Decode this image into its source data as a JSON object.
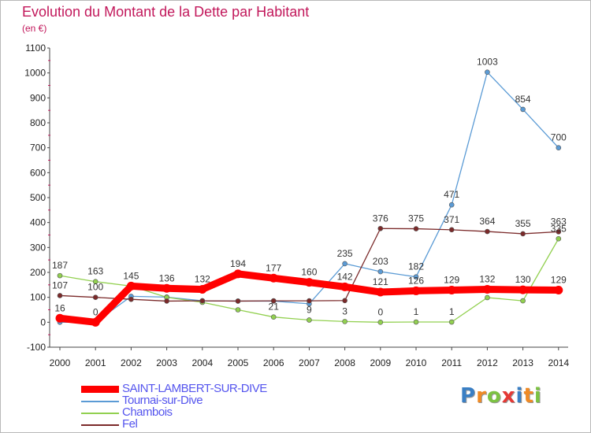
{
  "header": {
    "title": "Evolution du Montant de la Dette par Habitant",
    "subtitle": "(en €)"
  },
  "brand": {
    "letters": [
      "P",
      "r",
      "o",
      "x",
      "i",
      "t",
      "i"
    ],
    "colors": [
      "#3a7fc4",
      "#f08a24",
      "#7cc242",
      "#e53935",
      "#3a7fc4",
      "#f08a24",
      "#7cc242"
    ]
  },
  "colors": {
    "title": "#c2185b",
    "grid_tick": "#c2185b",
    "axis": "#444444"
  },
  "chart_data": {
    "type": "line",
    "title": "Evolution du Montant de la Dette par Habitant",
    "subtitle": "(en €)",
    "x": [
      2000,
      2001,
      2002,
      2003,
      2004,
      2005,
      2006,
      2007,
      2008,
      2009,
      2010,
      2011,
      2012,
      2013,
      2014
    ],
    "ylim": [
      -100,
      1100
    ],
    "yticks": [
      -100,
      0,
      100,
      200,
      300,
      400,
      500,
      600,
      700,
      800,
      900,
      1000,
      1100
    ],
    "grid": false,
    "legend_position": "bottom-left",
    "series": [
      {
        "name": "Tournai-sur-Dive",
        "color": "#5b9bd5",
        "values": [
          0,
          0,
          104,
          101,
          86,
          85,
          85,
          74,
          235,
          203,
          182,
          471,
          1003,
          854,
          700
        ],
        "labels": [
          "",
          "",
          "",
          "",
          "",
          "",
          "",
          "",
          "235",
          "203",
          "182",
          "471",
          "1003",
          "854",
          "700"
        ]
      },
      {
        "name": "Chambois",
        "color": "#92d050",
        "values": [
          187,
          163,
          145,
          100,
          80,
          50,
          21,
          9,
          3,
          0,
          1,
          1,
          99,
          86,
          335
        ],
        "labels": [
          "187",
          "163",
          "145",
          "",
          "",
          "",
          "21",
          "9",
          "3",
          "0",
          "1",
          "1",
          "",
          "",
          "335"
        ]
      },
      {
        "name": "Fel",
        "color": "#7b2a2a",
        "values": [
          107,
          100,
          92,
          85,
          86,
          85,
          86,
          86,
          87,
          376,
          375,
          371,
          364,
          355,
          363
        ],
        "labels": [
          "107",
          "100",
          "",
          "",
          "",
          "",
          "",
          "",
          "",
          "376",
          "375",
          "371",
          "364",
          "355",
          "363"
        ]
      },
      {
        "name": "SAINT-LAMBERT-SUR-DIVE",
        "color": "#ff0000",
        "values": [
          16,
          0,
          145,
          136,
          132,
          194,
          177,
          160,
          142,
          121,
          126,
          129,
          132,
          130,
          129
        ],
        "labels": [
          "16",
          "0",
          "",
          "136",
          "132",
          "194",
          "177",
          "160",
          "142",
          "121",
          "126",
          "129",
          "132",
          "130",
          "129"
        ]
      }
    ],
    "legend": [
      "SAINT-LAMBERT-SUR-DIVE",
      "Tournai-sur-Dive",
      "Chambois",
      "Fel"
    ]
  }
}
